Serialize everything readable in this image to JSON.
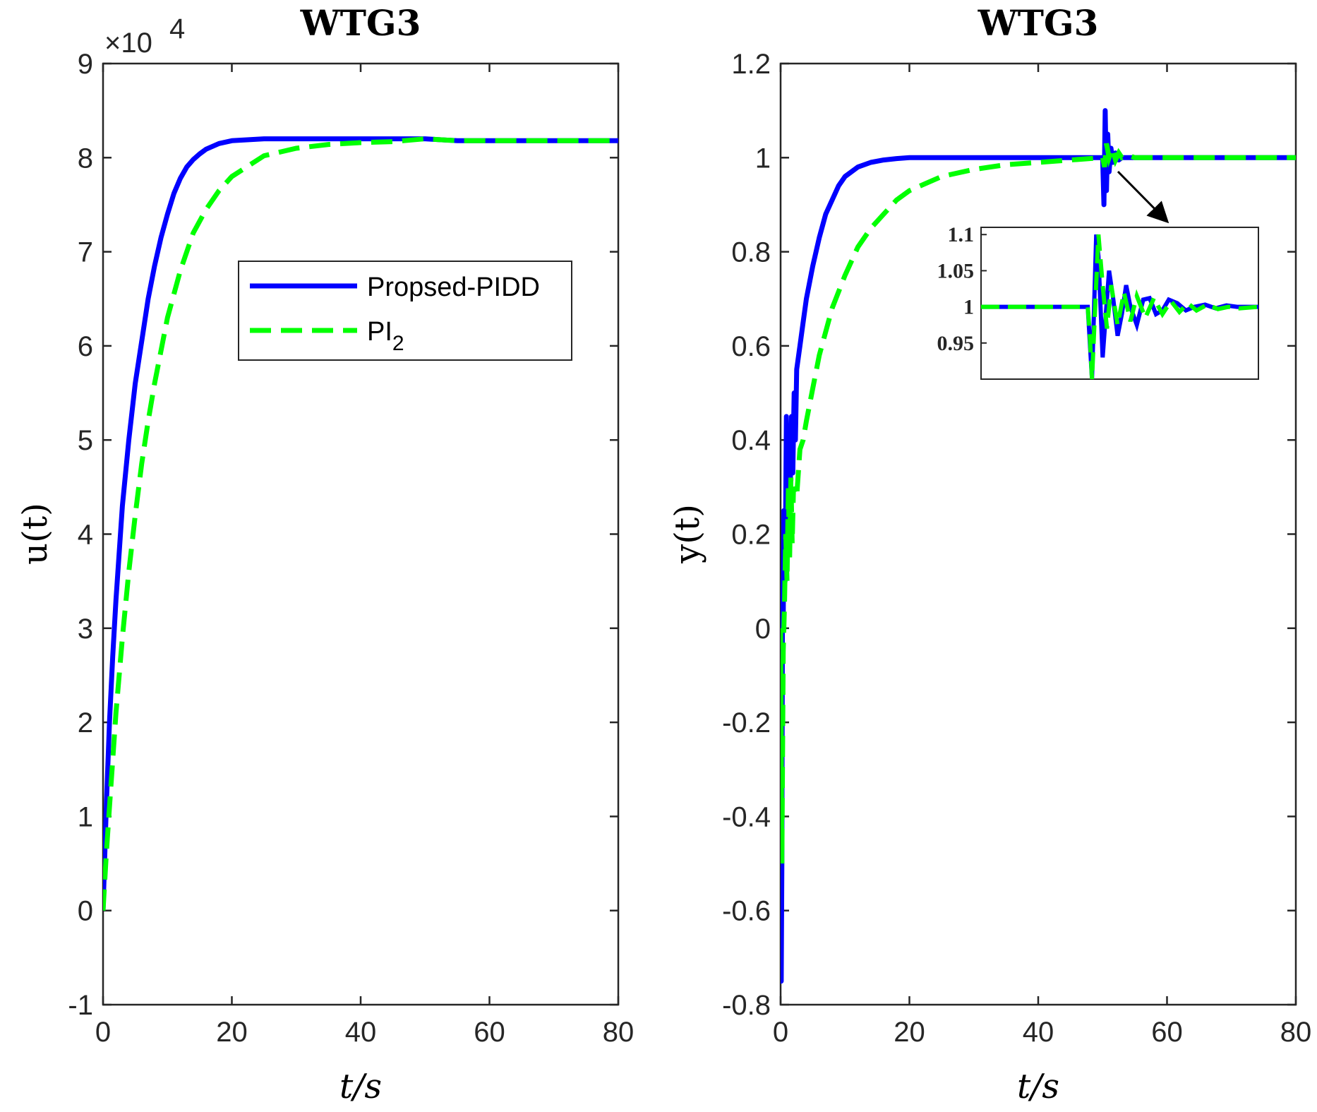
{
  "colors": {
    "proposed": "#0000ff",
    "pi2": "#00ff00",
    "axis": "#262626",
    "arrow": "#000000"
  },
  "chart_data": [
    {
      "type": "line",
      "title": "WTG3",
      "xlabel": "t/s",
      "ylabel": "u(t)",
      "y_exponent": "×10",
      "y_exponent_power": "4",
      "xlim": [
        0,
        80
      ],
      "ylim": [
        -1,
        9
      ],
      "xticks": [
        0,
        20,
        40,
        60,
        80
      ],
      "yticks": [
        -1,
        0,
        1,
        2,
        3,
        4,
        5,
        6,
        7,
        8,
        9
      ],
      "xtick_labels": [
        "0",
        "20",
        "40",
        "60",
        "80"
      ],
      "ytick_labels": [
        "-1",
        "0",
        "1",
        "2",
        "3",
        "4",
        "5",
        "6",
        "7",
        "8",
        "9"
      ],
      "legend": {
        "location": "center-right",
        "entries": [
          {
            "label": "Propsed-PIDD",
            "style": "solid",
            "color": "#0000ff"
          },
          {
            "label": "PI",
            "subscript": "2",
            "style": "dashed",
            "color": "#00ff00"
          }
        ]
      },
      "series": [
        {
          "name": "Propsed-PIDD",
          "style": "solid",
          "x": [
            0,
            0.5,
            1,
            1.5,
            2,
            3,
            4,
            5,
            6,
            7,
            8,
            9,
            10,
            11,
            12,
            13,
            14,
            15,
            16,
            18,
            20,
            25,
            30,
            40,
            50,
            55,
            60,
            70,
            80
          ],
          "y": [
            0,
            1.1,
            2.0,
            2.7,
            3.3,
            4.3,
            5.0,
            5.6,
            6.05,
            6.5,
            6.85,
            7.15,
            7.4,
            7.62,
            7.78,
            7.9,
            7.98,
            8.04,
            8.09,
            8.15,
            8.18,
            8.2,
            8.2,
            8.2,
            8.2,
            8.18,
            8.18,
            8.18,
            8.18
          ]
        },
        {
          "name": "PI2",
          "style": "dashed",
          "x": [
            0,
            0.5,
            1,
            2,
            3,
            4,
            5,
            6,
            7,
            8,
            10,
            12,
            14,
            16,
            18,
            20,
            25,
            30,
            35,
            40,
            45,
            50,
            55,
            60,
            70,
            80
          ],
          "y": [
            0,
            0.6,
            1.1,
            2.1,
            2.9,
            3.6,
            4.2,
            4.75,
            5.2,
            5.6,
            6.3,
            6.8,
            7.2,
            7.45,
            7.65,
            7.8,
            8.02,
            8.1,
            8.14,
            8.16,
            8.17,
            8.2,
            8.18,
            8.18,
            8.18,
            8.18
          ]
        }
      ]
    },
    {
      "type": "line",
      "title": "WTG3",
      "xlabel": "t/s",
      "ylabel": "y(t)",
      "xlim": [
        0,
        80
      ],
      "ylim": [
        -0.8,
        1.2
      ],
      "xticks": [
        0,
        20,
        40,
        60,
        80
      ],
      "yticks": [
        -0.8,
        -0.6,
        -0.4,
        -0.2,
        0,
        0.2,
        0.4,
        0.6,
        0.8,
        1,
        1.2
      ],
      "xtick_labels": [
        "0",
        "20",
        "40",
        "60",
        "80"
      ],
      "ytick_labels": [
        "-0.8",
        "-0.6",
        "-0.4",
        "-0.2",
        "0",
        "0.2",
        "0.4",
        "0.6",
        "0.8",
        "1",
        "1.2"
      ],
      "series": [
        {
          "name": "Propsed-PIDD",
          "style": "solid",
          "x": [
            0,
            0.1,
            0.2,
            0.3,
            0.4,
            0.5,
            0.7,
            0.9,
            1.1,
            1.3,
            1.5,
            1.7,
            1.9,
            2.1,
            2.3,
            2.5,
            3,
            3.5,
            4,
            5,
            6,
            7,
            8,
            9,
            10,
            12,
            14,
            16,
            18,
            20,
            25,
            30,
            40,
            50,
            50.2,
            50.4,
            50.6,
            50.8,
            51,
            51.3,
            51.6,
            52,
            52.5,
            53,
            55,
            60,
            70,
            80
          ],
          "y": [
            -0.1,
            -0.75,
            -0.5,
            0.1,
            0.0,
            0.25,
            0.1,
            0.45,
            0.2,
            0.42,
            0.3,
            0.45,
            0.33,
            0.5,
            0.4,
            0.55,
            0.6,
            0.65,
            0.7,
            0.77,
            0.83,
            0.88,
            0.91,
            0.94,
            0.96,
            0.98,
            0.99,
            0.995,
            0.998,
            1.0,
            1.0,
            1.0,
            1.0,
            1.0,
            0.9,
            1.1,
            0.93,
            1.05,
            0.97,
            1.02,
            0.99,
            1.01,
            0.995,
            1.0,
            1.0,
            1.0,
            1.0,
            1.0
          ]
        },
        {
          "name": "PI2",
          "style": "dashed",
          "x": [
            0,
            0.2,
            0.4,
            0.6,
            0.8,
            1,
            1.2,
            1.4,
            1.6,
            1.8,
            2,
            2.5,
            3,
            3.5,
            4,
            5,
            6,
            8,
            10,
            12,
            14,
            16,
            18,
            20,
            25,
            30,
            35,
            40,
            45,
            50,
            50.3,
            50.6,
            51,
            51.5,
            52,
            52.5,
            53,
            54,
            55,
            60,
            70,
            80
          ],
          "y": [
            0,
            -0.5,
            -0.05,
            0.05,
            0.2,
            0.1,
            0.3,
            0.15,
            0.32,
            0.18,
            0.3,
            0.28,
            0.38,
            0.4,
            0.44,
            0.51,
            0.58,
            0.68,
            0.75,
            0.81,
            0.85,
            0.88,
            0.91,
            0.93,
            0.96,
            0.975,
            0.985,
            0.99,
            0.995,
            1.0,
            0.98,
            1.03,
            1.0,
            1.02,
            0.995,
            1.01,
            1.0,
            1.005,
            1.0,
            1.0,
            1.0,
            1.0
          ]
        }
      ],
      "inset": {
        "xlim": [
          45,
          58
        ],
        "ylim": [
          0.9,
          1.11
        ],
        "ytick_labels": [
          "1.1",
          "1.05",
          "1",
          "0.95"
        ],
        "yticks": [
          1.1,
          1.05,
          1.0,
          0.95
        ],
        "series": [
          {
            "name": "Propsed-PIDD",
            "x": [
              45,
              47,
              49,
              50,
              50.1,
              50.2,
              50.3,
              50.4,
              50.5,
              50.6,
              50.7,
              50.8,
              51.0,
              51.2,
              51.4,
              51.6,
              51.8,
              52.0,
              52.3,
              52.6,
              52.9,
              53.2,
              53.5,
              53.8,
              54.2,
              54.6,
              55,
              55.5,
              56,
              56.5,
              57,
              58
            ],
            "y": [
              1.0,
              1.0,
              1.0,
              1.0,
              0.95,
              0.9,
              1.0,
              1.1,
              1.07,
              1.0,
              0.93,
              0.97,
              1.05,
              1.01,
              0.96,
              0.99,
              1.03,
              1.0,
              0.975,
              1.01,
              1.012,
              0.99,
              0.995,
              1.01,
              1.005,
              0.995,
              1.0,
              1.003,
              0.998,
              1.002,
              1.0,
              1.0
            ]
          },
          {
            "name": "PI2",
            "x": [
              45,
              47,
              49,
              50,
              50.1,
              50.2,
              50.35,
              50.5,
              50.7,
              50.9,
              51.1,
              51.4,
              51.7,
              52.0,
              52.3,
              52.7,
              53.1,
              53.5,
              53.9,
              54.3,
              54.7,
              55.1,
              55.6,
              56.1,
              56.6,
              57.1,
              58
            ],
            "y": [
              1.0,
              1.0,
              1.0,
              1.0,
              0.96,
              0.9,
              1.0,
              1.1,
              1.03,
              0.97,
              1.03,
              0.975,
              1.02,
              0.98,
              1.015,
              0.985,
              1.012,
              0.99,
              1.008,
              0.993,
              1.005,
              0.995,
              1.003,
              0.997,
              1.0,
              0.998,
              1.0
            ]
          }
        ]
      }
    }
  ]
}
